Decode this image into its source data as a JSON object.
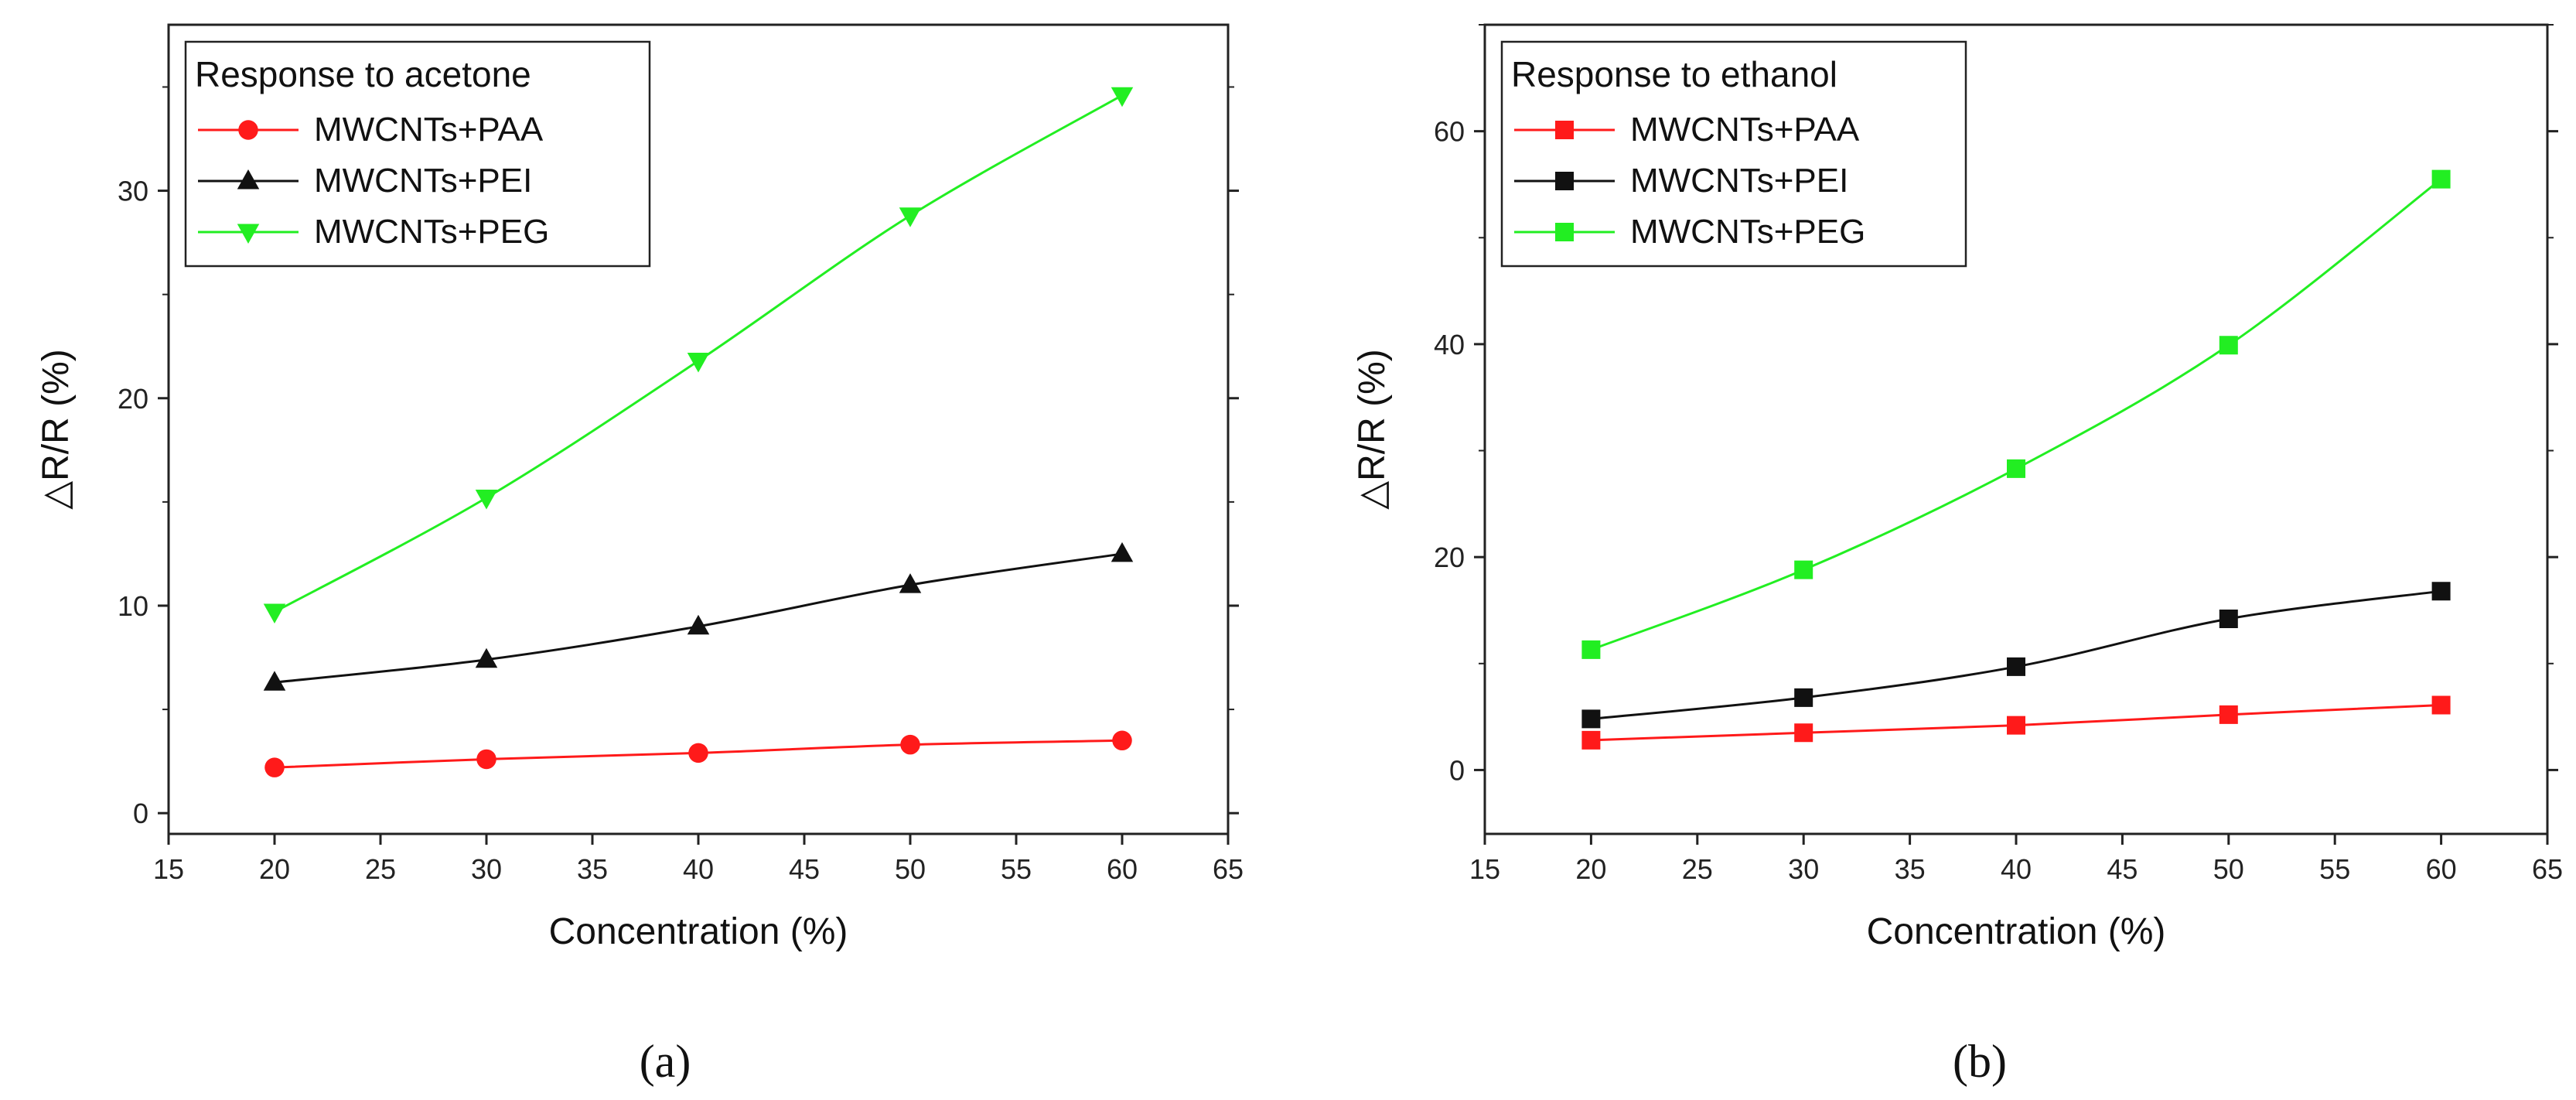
{
  "chart_data": [
    {
      "type": "line",
      "panel_label": "(a)",
      "title": "",
      "legend_title": "Response to acetone",
      "legend_position": "top-left",
      "xlabel": "Concentration (%)",
      "ylabel": "△R/R (%)",
      "xlim": [
        15,
        65
      ],
      "ylim": [
        -1,
        38
      ],
      "xticks": [
        15,
        20,
        25,
        30,
        35,
        40,
        45,
        50,
        55,
        60,
        65
      ],
      "yticks": [
        0,
        10,
        20,
        30
      ],
      "x": [
        20,
        30,
        40,
        50,
        60
      ],
      "series": [
        {
          "name": "MWCNTs+PAA",
          "color": "#ff1a1a",
          "marker": "circle",
          "values": [
            2.2,
            2.6,
            2.9,
            3.3,
            3.5
          ]
        },
        {
          "name": "MWCNTs+PEI",
          "color": "#111111",
          "marker": "triangle-up",
          "values": [
            6.3,
            7.4,
            9.0,
            11.0,
            12.5
          ]
        },
        {
          "name": "MWCNTs+PEG",
          "color": "#22ee22",
          "marker": "triangle-down",
          "values": [
            9.7,
            15.2,
            21.8,
            28.8,
            34.6
          ]
        }
      ]
    },
    {
      "type": "line",
      "panel_label": "(b)",
      "title": "",
      "legend_title": "Response to ethanol",
      "legend_position": "top-left",
      "xlabel": "Concentration (%)",
      "ylabel": "△R/R (%)",
      "xlim": [
        15,
        65
      ],
      "ylim": [
        -6,
        70
      ],
      "xticks": [
        15,
        20,
        25,
        30,
        35,
        40,
        45,
        50,
        55,
        60,
        65
      ],
      "yticks": [
        0,
        20,
        40,
        60
      ],
      "x": [
        20,
        30,
        40,
        50,
        60
      ],
      "series": [
        {
          "name": "MWCNTs+PAA",
          "color": "#ff1a1a",
          "marker": "square",
          "values": [
            2.8,
            3.5,
            4.2,
            5.2,
            6.1
          ]
        },
        {
          "name": "MWCNTs+PEI",
          "color": "#111111",
          "marker": "square",
          "values": [
            4.8,
            6.8,
            9.7,
            14.2,
            16.8
          ]
        },
        {
          "name": "MWCNTs+PEG",
          "color": "#22ee22",
          "marker": "square",
          "values": [
            11.3,
            18.8,
            28.3,
            39.9,
            55.5
          ]
        }
      ]
    }
  ]
}
